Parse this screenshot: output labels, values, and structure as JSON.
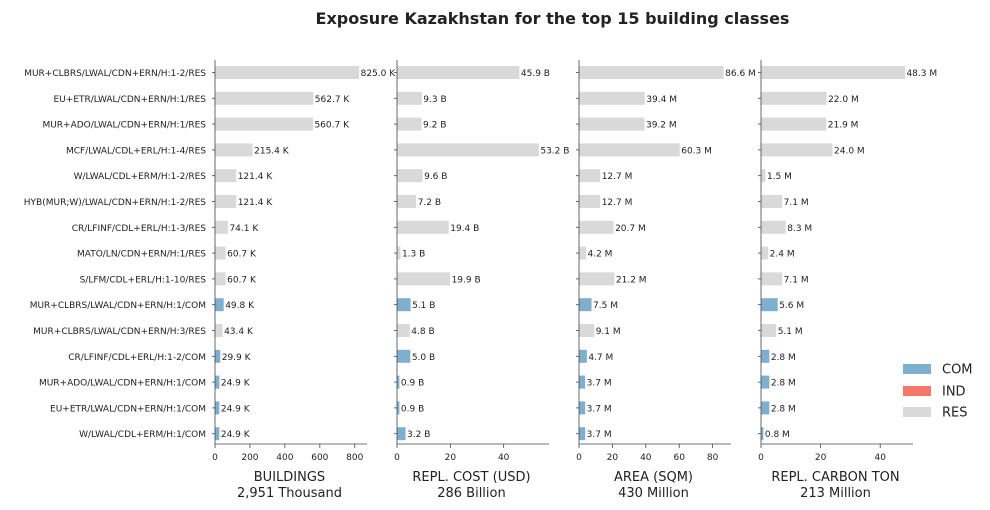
{
  "title": "Exposure Kazakhstan for the top 15 building classes",
  "chart_data": {
    "type": "bar",
    "orientation": "horizontal",
    "title": "Exposure Kazakhstan for the top 15 building classes",
    "categories": [
      "MUR+CLBRS/LWAL/CDN+ERN/H:1-2/RES",
      "EU+ETR/LWAL/CDN+ERN/H:1/RES",
      "MUR+ADO/LWAL/CDN+ERN/H:1/RES",
      "MCF/LWAL/CDL+ERL/H:1-4/RES",
      "W/LWAL/CDL+ERM/H:1-2/RES",
      "HYB(MUR;W)/LWAL/CDN+ERN/H:1-2/RES",
      "CR/LFINF/CDL+ERL/H:1-3/RES",
      "MATO/LN/CDN+ERN/H:1/RES",
      "S/LFM/CDL+ERL/H:1-10/RES",
      "MUR+CLBRS/LWAL/CDN+ERN/H:1/COM",
      "MUR+CLBRS/LWAL/CDN+ERN/H:3/RES",
      "CR/LFINF/CDL+ERL/H:1-2/COM",
      "MUR+ADO/LWAL/CDN+ERN/H:1/COM",
      "EU+ETR/LWAL/CDN+ERN/H:1/COM",
      "W/LWAL/CDL+ERM/H:1/COM"
    ],
    "occupancy": [
      "RES",
      "RES",
      "RES",
      "RES",
      "RES",
      "RES",
      "RES",
      "RES",
      "RES",
      "COM",
      "RES",
      "COM",
      "COM",
      "COM",
      "COM"
    ],
    "colors": {
      "COM": "#7fafce",
      "IND": "#f4786a",
      "RES": "#d9d9d9"
    },
    "legend": {
      "position": "right",
      "entries": [
        "COM",
        "IND",
        "RES"
      ]
    },
    "panels": [
      {
        "xlabel": "BUILDINGS",
        "subtitle": "2,951 Thousand",
        "xlim": [
          0,
          870
        ],
        "xticks": [
          0,
          200,
          400,
          600,
          800
        ],
        "values": [
          825.0,
          562.7,
          560.7,
          215.4,
          121.4,
          121.4,
          74.1,
          60.7,
          60.7,
          49.8,
          43.4,
          29.9,
          24.9,
          24.9,
          24.9
        ],
        "labels": [
          "825.0 K",
          "562.7 K",
          "560.7 K",
          "215.4 K",
          "121.4 K",
          "121.4 K",
          "74.1 K",
          "60.7 K",
          "60.7 K",
          "49.8 K",
          "43.4 K",
          "29.9 K",
          "24.9 K",
          "24.9 K",
          "24.9 K"
        ]
      },
      {
        "xlabel": "REPL. COST (USD)",
        "subtitle": "286 Billion",
        "xlim": [
          0,
          57
        ],
        "xticks": [
          0,
          20,
          40
        ],
        "values": [
          45.9,
          9.3,
          9.2,
          53.2,
          9.6,
          7.2,
          19.4,
          1.3,
          19.9,
          5.1,
          4.8,
          5.0,
          0.9,
          0.9,
          3.2
        ],
        "labels": [
          "45.9 B",
          "9.3 B",
          "9.2 B",
          "53.2 B",
          "9.6 B",
          "7.2 B",
          "19.4 B",
          "1.3 B",
          "19.9 B",
          "5.1 B",
          "4.8 B",
          "5.0 B",
          "0.9 B",
          "0.9 B",
          "3.2 B"
        ]
      },
      {
        "xlabel": "AREA (SQM)",
        "subtitle": "430 Million",
        "xlim": [
          0,
          91
        ],
        "xticks": [
          0,
          20,
          40,
          60,
          80
        ],
        "values": [
          86.6,
          39.4,
          39.2,
          60.3,
          12.7,
          12.7,
          20.7,
          4.2,
          21.2,
          7.5,
          9.1,
          4.7,
          3.7,
          3.7,
          3.7
        ],
        "labels": [
          "86.6 M",
          "39.4 M",
          "39.2 M",
          "60.3 M",
          "12.7 M",
          "12.7 M",
          "20.7 M",
          "4.2 M",
          "21.2 M",
          "7.5 M",
          "9.1 M",
          "4.7 M",
          "3.7 M",
          "3.7 M",
          "3.7 M"
        ]
      },
      {
        "xlabel": "REPL. CARBON TON",
        "subtitle": "213 Million",
        "xlim": [
          0,
          51
        ],
        "xticks": [
          0,
          20,
          40
        ],
        "values": [
          48.3,
          22.0,
          21.9,
          24.0,
          1.5,
          7.1,
          8.3,
          2.4,
          7.1,
          5.6,
          5.1,
          2.8,
          2.8,
          2.8,
          0.8
        ],
        "labels": [
          "48.3 M",
          "22.0 M",
          "21.9 M",
          "24.0 M",
          "1.5 M",
          "7.1 M",
          "8.3 M",
          "2.4 M",
          "7.1 M",
          "5.6 M",
          "5.1 M",
          "2.8 M",
          "2.8 M",
          "2.8 M",
          "0.8 M"
        ]
      }
    ]
  }
}
